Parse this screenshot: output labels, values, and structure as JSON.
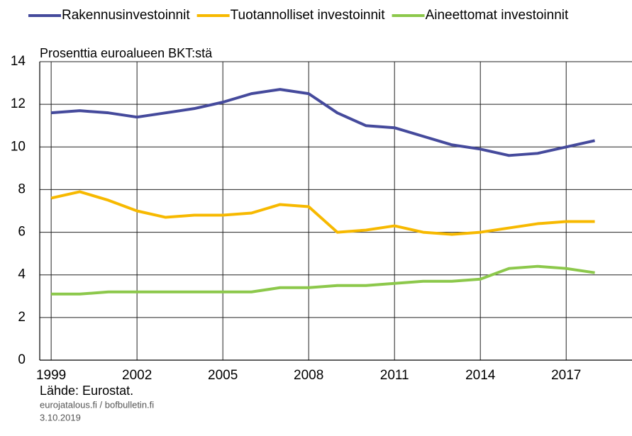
{
  "chart_data": {
    "type": "line",
    "y_label": "Prosenttia euroalueen BKT:stä",
    "source": "Lähde: Eurostat.",
    "website": "eurojatalous.fi / bofbulletin.fi",
    "date": "3.10.2019",
    "x": [
      1999,
      2000,
      2001,
      2002,
      2003,
      2004,
      2005,
      2006,
      2007,
      2008,
      2009,
      2010,
      2011,
      2012,
      2013,
      2014,
      2015,
      2016,
      2017,
      2018
    ],
    "series": [
      {
        "name": "Rakennusinvestoinnit",
        "color": "#454a9c",
        "values": [
          11.6,
          11.7,
          11.6,
          11.4,
          11.6,
          11.8,
          12.1,
          12.5,
          12.7,
          12.5,
          11.6,
          11.0,
          10.9,
          10.5,
          10.1,
          9.9,
          9.6,
          9.7,
          10.0,
          10.3
        ]
      },
      {
        "name": "Tuotannolliset investoinnit",
        "color": "#f7b900",
        "values": [
          7.6,
          7.9,
          7.5,
          7.0,
          6.7,
          6.8,
          6.8,
          6.9,
          7.3,
          7.2,
          6.0,
          6.1,
          6.3,
          6.0,
          5.9,
          6.0,
          6.2,
          6.4,
          6.5,
          6.5
        ]
      },
      {
        "name": "Aineettomat investoinnit",
        "color": "#8cc84b",
        "values": [
          3.1,
          3.1,
          3.2,
          3.2,
          3.2,
          3.2,
          3.2,
          3.2,
          3.4,
          3.4,
          3.5,
          3.5,
          3.6,
          3.7,
          3.7,
          3.8,
          4.3,
          4.4,
          4.3,
          4.1
        ]
      }
    ],
    "xlim": [
      1998.6,
      2019.3
    ],
    "xticks": [
      1999,
      2002,
      2005,
      2008,
      2011,
      2014,
      2017
    ],
    "ylim": [
      0,
      14
    ],
    "yticks": [
      0,
      2,
      4,
      6,
      8,
      10,
      12,
      14
    ],
    "grid": true,
    "legend": "top"
  }
}
